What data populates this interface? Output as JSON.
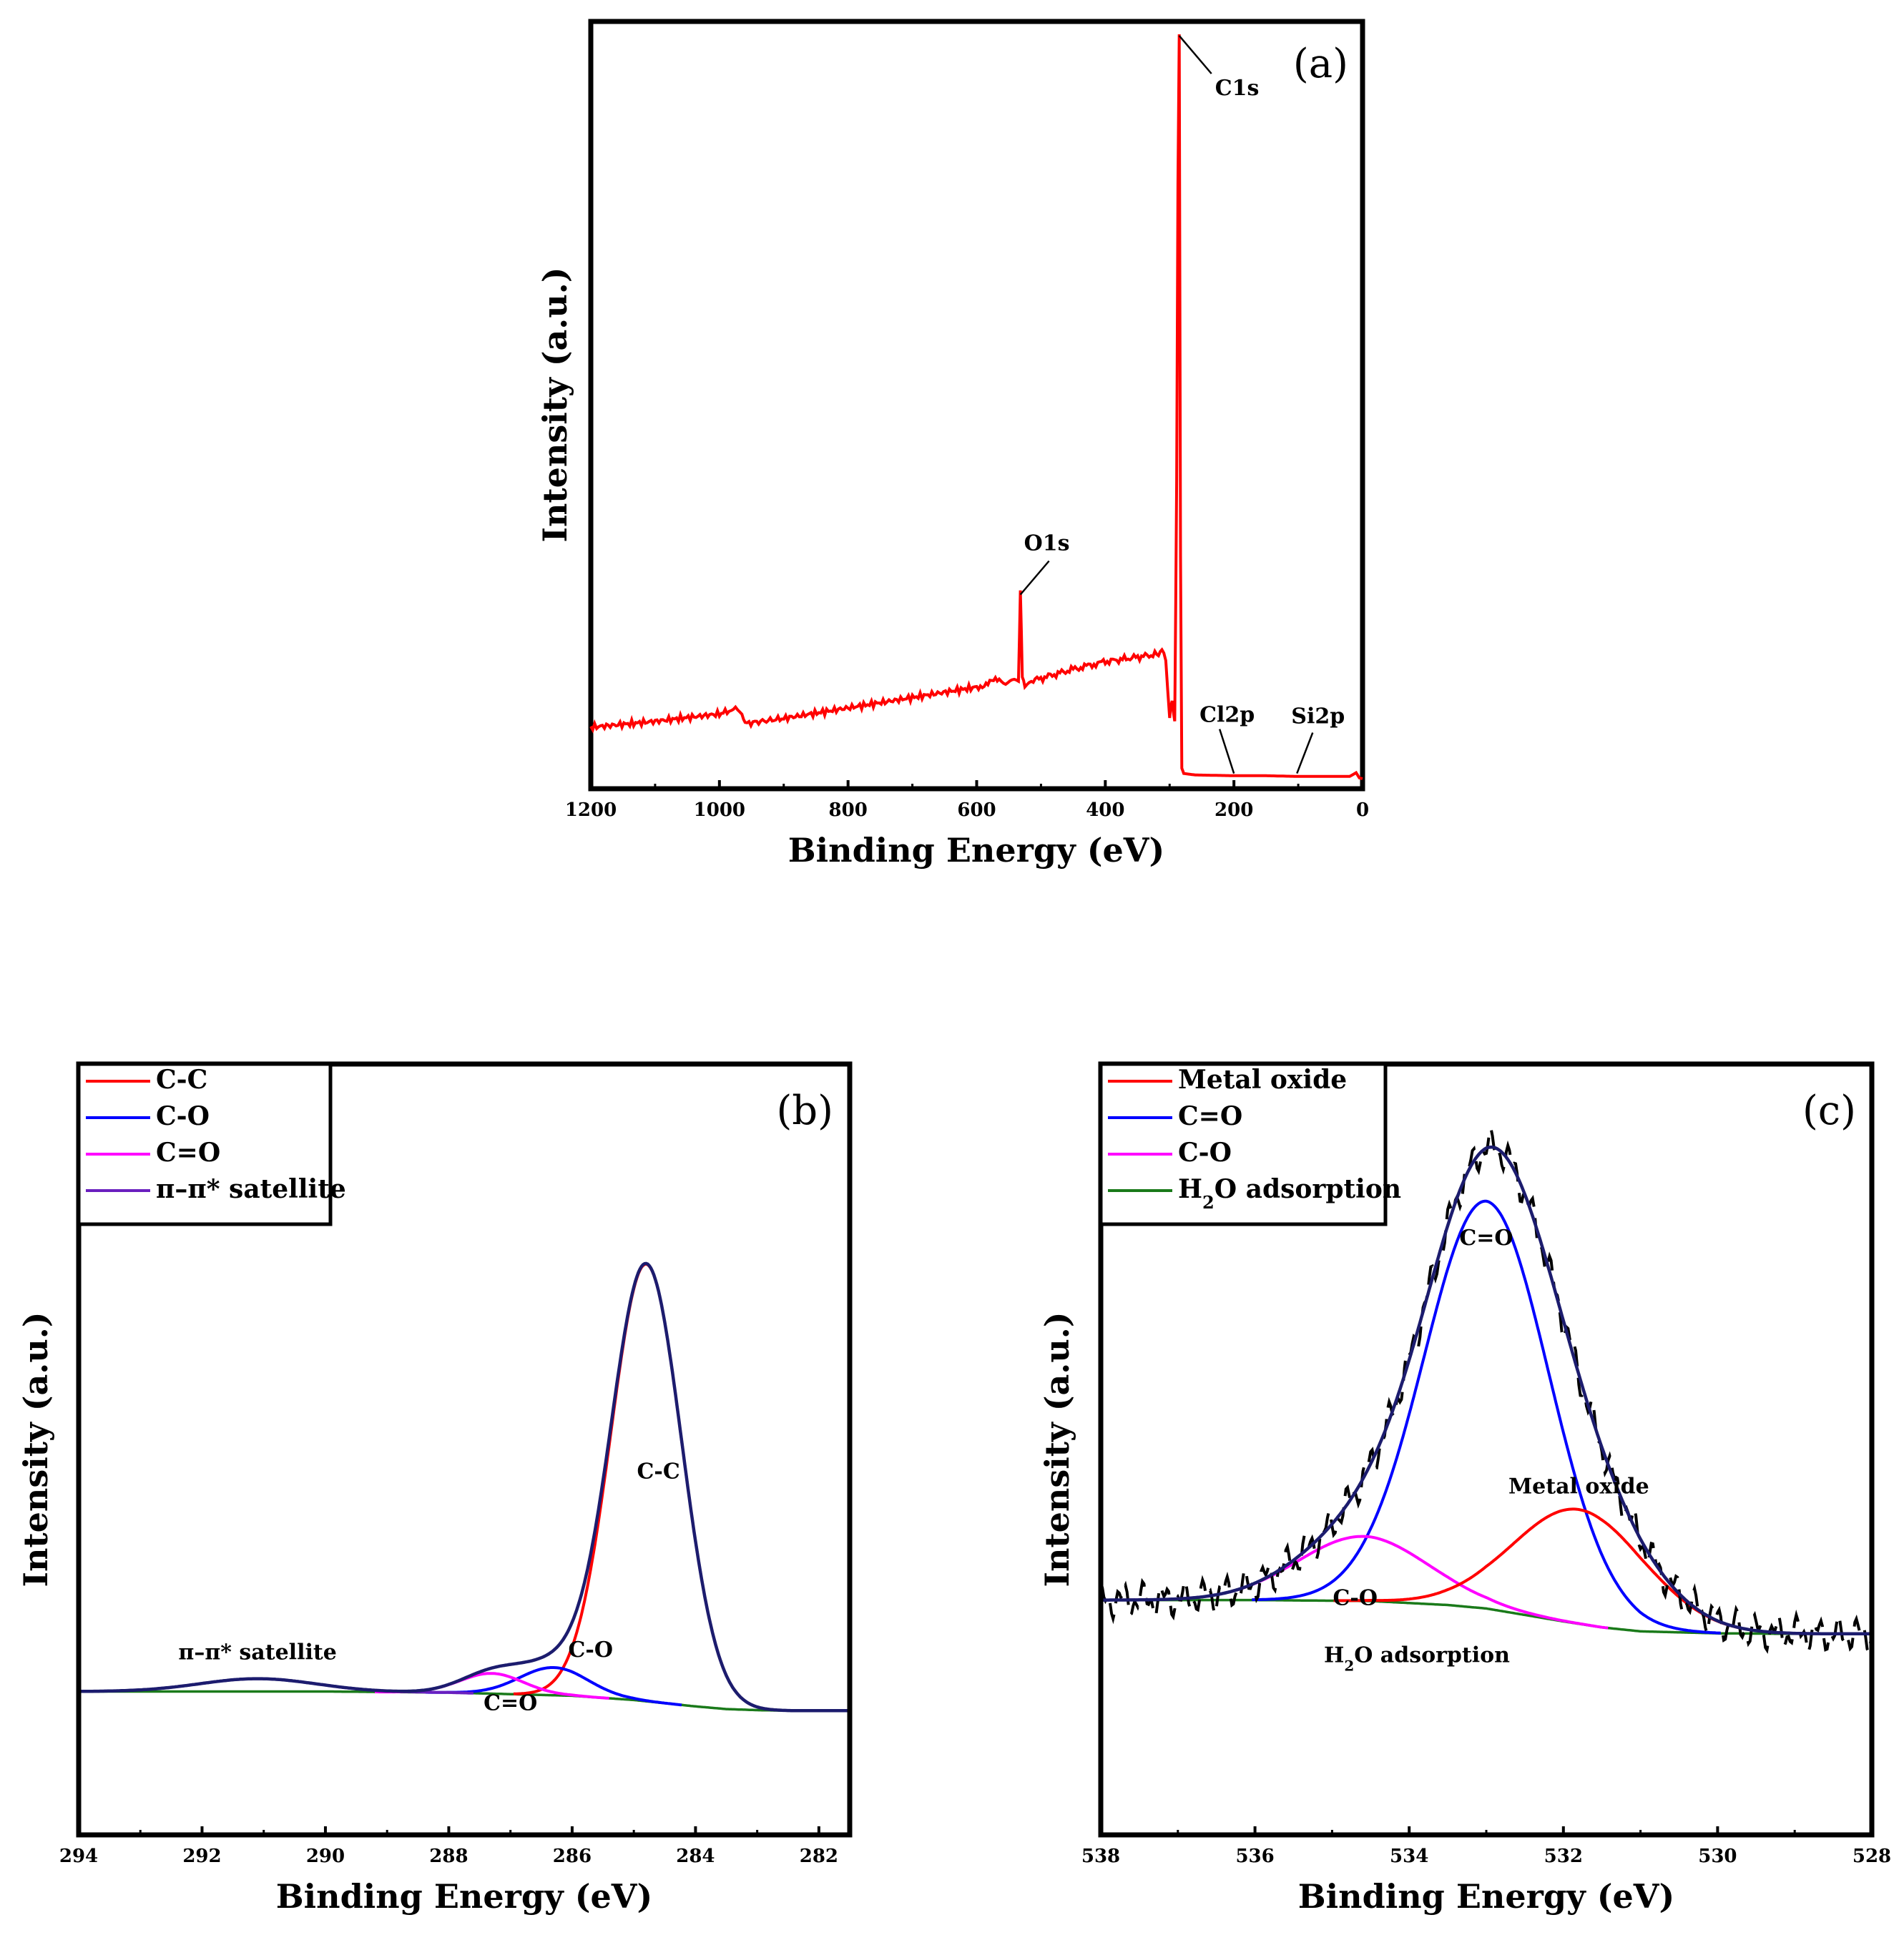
{
  "chart_data": [
    {
      "id": "a",
      "type": "line",
      "panel_label": "(a)",
      "xlabel": "Binding Energy (eV)",
      "ylabel": "Intensity (a.u.)",
      "xlim": [
        1200,
        0
      ],
      "ylim": [
        0,
        100
      ],
      "xticks": [
        1200,
        1000,
        800,
        600,
        400,
        200,
        0
      ],
      "annotations": [
        {
          "text": "C1s",
          "x": 285,
          "y": 100
        },
        {
          "text": "O1s",
          "x": 532,
          "y": 25
        },
        {
          "text": "Cl2p",
          "x": 200,
          "y": 1
        },
        {
          "text": "Si2p",
          "x": 102,
          "y": 1
        }
      ],
      "series": [
        {
          "name": "Survey",
          "color": "#ff0000",
          "x": [
            1200,
            1100,
            1000,
            985,
            975,
            965,
            960,
            900,
            800,
            700,
            600,
            565,
            555,
            545,
            535,
            532,
            529,
            525,
            515,
            450,
            400,
            320,
            312,
            306,
            300,
            296,
            292,
            289,
            287,
            285,
            283,
            281,
            278,
            260,
            200,
            150,
            100,
            50,
            20,
            10,
            5,
            0
          ],
          "y": [
            7.0,
            7.8,
            8.8,
            9.2,
            10.2,
            8.6,
            7.5,
            8.2,
            9.6,
            11.0,
            12.4,
            13.4,
            12.8,
            12.9,
            13.2,
            25.0,
            14.0,
            12.6,
            13.2,
            14.8,
            15.8,
            16.8,
            17.4,
            16.0,
            8.3,
            10.5,
            7.8,
            40,
            80,
            100,
            30,
            1.5,
            0.8,
            0.6,
            0.5,
            0.5,
            0.4,
            0.4,
            0.4,
            0.9,
            0.2,
            0.1
          ]
        }
      ]
    },
    {
      "id": "b",
      "type": "line",
      "panel_label": "(b)",
      "xlabel": "Binding Energy (eV)",
      "ylabel": "Intensity (a.u.)",
      "xlim": [
        294,
        281.5
      ],
      "ylim": [
        -10,
        100
      ],
      "xticks": [
        294,
        292,
        290,
        288,
        286,
        284,
        282
      ],
      "legend": {
        "placement": "top-left",
        "entries": [
          {
            "label": "C-C",
            "color": "#ff0000"
          },
          {
            "label": "C-O",
            "color": "#0000ff"
          },
          {
            "label": "C=O",
            "color": "#ff00ff"
          },
          {
            "label": "π–π* satellite",
            "color": "#6a1fbf"
          }
        ]
      },
      "annotations": [
        {
          "text": "C-C",
          "x": 284.6,
          "y": 40
        },
        {
          "text": "C-O",
          "x": 285.7,
          "y": 6.5
        },
        {
          "text": "C=O",
          "x": 287.0,
          "y": -3.5
        },
        {
          "text": "π–π* satellite",
          "x": 291.1,
          "y": 6
        }
      ],
      "background": {
        "color": "#1a7a1a",
        "x": [
          294,
          290,
          288,
          286,
          285,
          284.5,
          284,
          283.5,
          283,
          282.5,
          281.5
        ],
        "y": [
          0,
          0,
          -0.2,
          -0.8,
          -1.6,
          -2.2,
          -2.8,
          -3.3,
          -3.5,
          -3.6,
          -3.6
        ]
      },
      "peaks": [
        {
          "name": "C-C",
          "color": "#ff0000",
          "center": 284.8,
          "height": 82,
          "fwhm": 1.35
        },
        {
          "name": "C-O",
          "color": "#0000ff",
          "center": 286.3,
          "height": 5.2,
          "fwhm": 1.3
        },
        {
          "name": "C=O",
          "color": "#ff00ff",
          "center": 287.3,
          "height": 3.8,
          "fwhm": 1.2
        },
        {
          "name": "π–π* satellite",
          "color": "#6a1fbf",
          "center": 291.1,
          "height": 2.4,
          "fwhm": 2.2
        }
      ],
      "envelope": {
        "name": "Fit envelope",
        "color": "#1c1c6e"
      }
    },
    {
      "id": "c",
      "type": "line",
      "panel_label": "(c)",
      "xlabel": "Binding Energy (eV)",
      "ylabel": "Intensity (a.u.)",
      "xlim": [
        538,
        528
      ],
      "ylim": [
        -12,
        100
      ],
      "xticks": [
        538,
        536,
        534,
        532,
        530,
        528
      ],
      "legend": {
        "placement": "top-left",
        "entries": [
          {
            "label": "Metal oxide",
            "color": "#ff0000"
          },
          {
            "label": "C=O",
            "color": "#0000ff"
          },
          {
            "label": "C-O",
            "color": "#ff00ff"
          },
          {
            "label": "H2O adsorption",
            "color": "#1a7a1a"
          }
        ]
      },
      "annotations": [
        {
          "text": "Metal oxide",
          "x": 531.8,
          "y": 30
        },
        {
          "text": "C=O",
          "x": 533.0,
          "y": 80
        },
        {
          "text": "C-O",
          "x": 534.7,
          "y": 7.5
        },
        {
          "text": "H2O adsorption",
          "x": 533.9,
          "y": -4
        }
      ],
      "background": {
        "color": "#1a7a1a",
        "x": [
          538,
          536,
          534.5,
          533.5,
          533,
          532.5,
          532,
          531.5,
          531,
          530,
          529,
          528
        ],
        "y": [
          8.5,
          8.5,
          8.3,
          7.5,
          6.8,
          5.5,
          4.2,
          3.0,
          2.2,
          1.8,
          1.7,
          1.7
        ]
      },
      "peaks": [
        {
          "name": "C=O",
          "color": "#0000ff",
          "center": 533.0,
          "height": 82,
          "fwhm": 1.9
        },
        {
          "name": "C-O",
          "color": "#ff00ff",
          "center": 534.6,
          "height": 13,
          "fwhm": 2.0
        },
        {
          "name": "Metal oxide",
          "color": "#ff0000",
          "center": 531.8,
          "height": 23,
          "fwhm": 2.0
        }
      ],
      "envelope": {
        "name": "Fit envelope",
        "color": "#1c1c6e"
      },
      "raw_data": {
        "name": "Raw data",
        "color": "#000000",
        "style": "dashed"
      }
    }
  ]
}
